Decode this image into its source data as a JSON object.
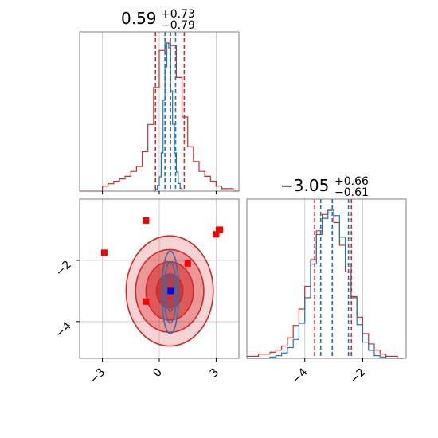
{
  "chart_data": [
    {
      "type": "histogram",
      "panel": "top-left",
      "title": {
        "median": "0.59",
        "plus": "+0.73",
        "minus": "−0.79"
      },
      "x_range": [
        -4.2,
        4.2
      ],
      "grid": true,
      "series": [
        {
          "color": "#d62728",
          "edges": [
            -4.2,
            -3.9,
            -3.6,
            -3.3,
            -3.0,
            -2.7,
            -2.4,
            -2.1,
            -1.8,
            -1.5,
            -1.2,
            -0.9,
            -0.6,
            -0.3,
            0.0,
            0.3,
            0.6,
            0.9,
            1.2,
            1.5,
            1.8,
            2.1,
            2.4,
            2.7,
            3.0,
            3.3,
            3.6,
            3.9,
            4.2
          ],
          "counts": [
            0,
            0,
            0,
            0,
            2,
            3,
            4,
            5,
            6,
            8,
            10,
            16,
            27,
            42,
            57,
            60,
            59,
            46,
            30,
            18,
            12,
            8,
            6,
            4,
            2,
            1,
            1,
            0
          ],
          "quantiles": [
            -0.2,
            0.59,
            1.32
          ]
        },
        {
          "color": "#1f77b4",
          "edges": [
            -0.3,
            -0.2,
            -0.1,
            0.0,
            0.1,
            0.2,
            0.3,
            0.4,
            0.5,
            0.6,
            0.7,
            0.8,
            0.9,
            1.0,
            1.1,
            1.2,
            1.3
          ],
          "counts": [
            0,
            2,
            6,
            15,
            40,
            95,
            130,
            155,
            150,
            105,
            70,
            40,
            20,
            8,
            3,
            0
          ],
          "quantiles": [
            0.3,
            0.58,
            0.86
          ]
        }
      ]
    },
    {
      "type": "histogram",
      "panel": "bottom-right",
      "title": {
        "median": "−3.05",
        "plus": "+0.66",
        "minus": "−0.61"
      },
      "x_range": [
        -6.0,
        -0.5
      ],
      "x_ticks": [
        -4,
        -2
      ],
      "x_tick_labels": [
        "−4",
        "−2"
      ],
      "grid": true,
      "series": [
        {
          "color": "#d62728",
          "edges": [
            -6.0,
            -5.8,
            -5.6,
            -5.4,
            -5.2,
            -5.0,
            -4.8,
            -4.6,
            -4.4,
            -4.2,
            -4.0,
            -3.8,
            -3.6,
            -3.4,
            -3.2,
            -3.0,
            -2.8,
            -2.6,
            -2.4,
            -2.2,
            -2.0,
            -1.8,
            -1.6,
            -1.4,
            -1.2,
            -1.0,
            -0.8,
            -0.6
          ],
          "counts": [
            1,
            1,
            2,
            2,
            3,
            4,
            6,
            10,
            16,
            24,
            35,
            48,
            62,
            70,
            72,
            66,
            55,
            42,
            30,
            20,
            12,
            7,
            4,
            2,
            1,
            1,
            0
          ],
          "quantiles": [
            -3.66,
            -3.05,
            -2.39
          ]
        },
        {
          "color": "#1f77b4",
          "edges": [
            -6.0,
            -5.8,
            -5.6,
            -5.4,
            -5.2,
            -5.0,
            -4.8,
            -4.6,
            -4.4,
            -4.2,
            -4.0,
            -3.8,
            -3.6,
            -3.4,
            -3.2,
            -3.0,
            -2.8,
            -2.6,
            -2.4,
            -2.2,
            -2.0,
            -1.8,
            -1.6,
            -1.4,
            -1.2,
            -1.0,
            -0.8,
            -0.6
          ],
          "counts": [
            0,
            0,
            0,
            0,
            1,
            2,
            4,
            8,
            14,
            26,
            45,
            70,
            92,
            104,
            110,
            106,
            90,
            70,
            45,
            25,
            12,
            6,
            2,
            1,
            0,
            0,
            0
          ],
          "quantiles": [
            -3.45,
            -3.05,
            -2.49
          ]
        }
      ]
    },
    {
      "type": "contour",
      "panel": "bottom-left",
      "x_range": [
        -4.2,
        4.2
      ],
      "y_range": [
        -5.2,
        0.0
      ],
      "x_ticks": [
        -3,
        0,
        3
      ],
      "x_tick_labels": [
        "−3",
        "0",
        "3"
      ],
      "y_ticks": [
        -4,
        -2
      ],
      "y_tick_labels": [
        "−4",
        "−2"
      ],
      "grid": true,
      "red_levels": [
        {
          "cx": 0.55,
          "cy": -3.0,
          "rx": 2.3,
          "ry": 1.8,
          "fill_opacity": 0.2
        },
        {
          "cx": 0.55,
          "cy": -3.0,
          "rx": 1.8,
          "ry": 1.35,
          "fill_opacity": 0.35
        },
        {
          "cx": 0.55,
          "cy": -3.0,
          "rx": 1.25,
          "ry": 0.95,
          "fill_opacity": 0.55
        },
        {
          "cx": 0.55,
          "cy": -3.0,
          "rx": 0.7,
          "ry": 0.55,
          "fill_opacity": 0.8
        }
      ],
      "blue_levels": [
        {
          "cx": 0.58,
          "cy": -3.05,
          "rx": 0.45,
          "ry": 1.35
        },
        {
          "cx": 0.58,
          "cy": -3.05,
          "rx": 0.32,
          "ry": 1.0
        },
        {
          "cx": 0.58,
          "cy": -3.05,
          "rx": 0.2,
          "ry": 0.62
        }
      ],
      "red_points": [
        [
          -2.9,
          -1.75
        ],
        [
          -0.7,
          -0.7
        ],
        [
          -0.7,
          -3.35
        ],
        [
          1.5,
          -2.1
        ],
        [
          3.0,
          -1.15
        ],
        [
          3.15,
          -1.0
        ],
        [
          3.2,
          -1.0
        ]
      ],
      "blue_point": [
        0.6,
        -3.0
      ],
      "red_color": "#d62728",
      "blue_color": "#1f77b4",
      "blue_point_color": "#0000ff",
      "red_point_color": "#ff0000"
    }
  ]
}
